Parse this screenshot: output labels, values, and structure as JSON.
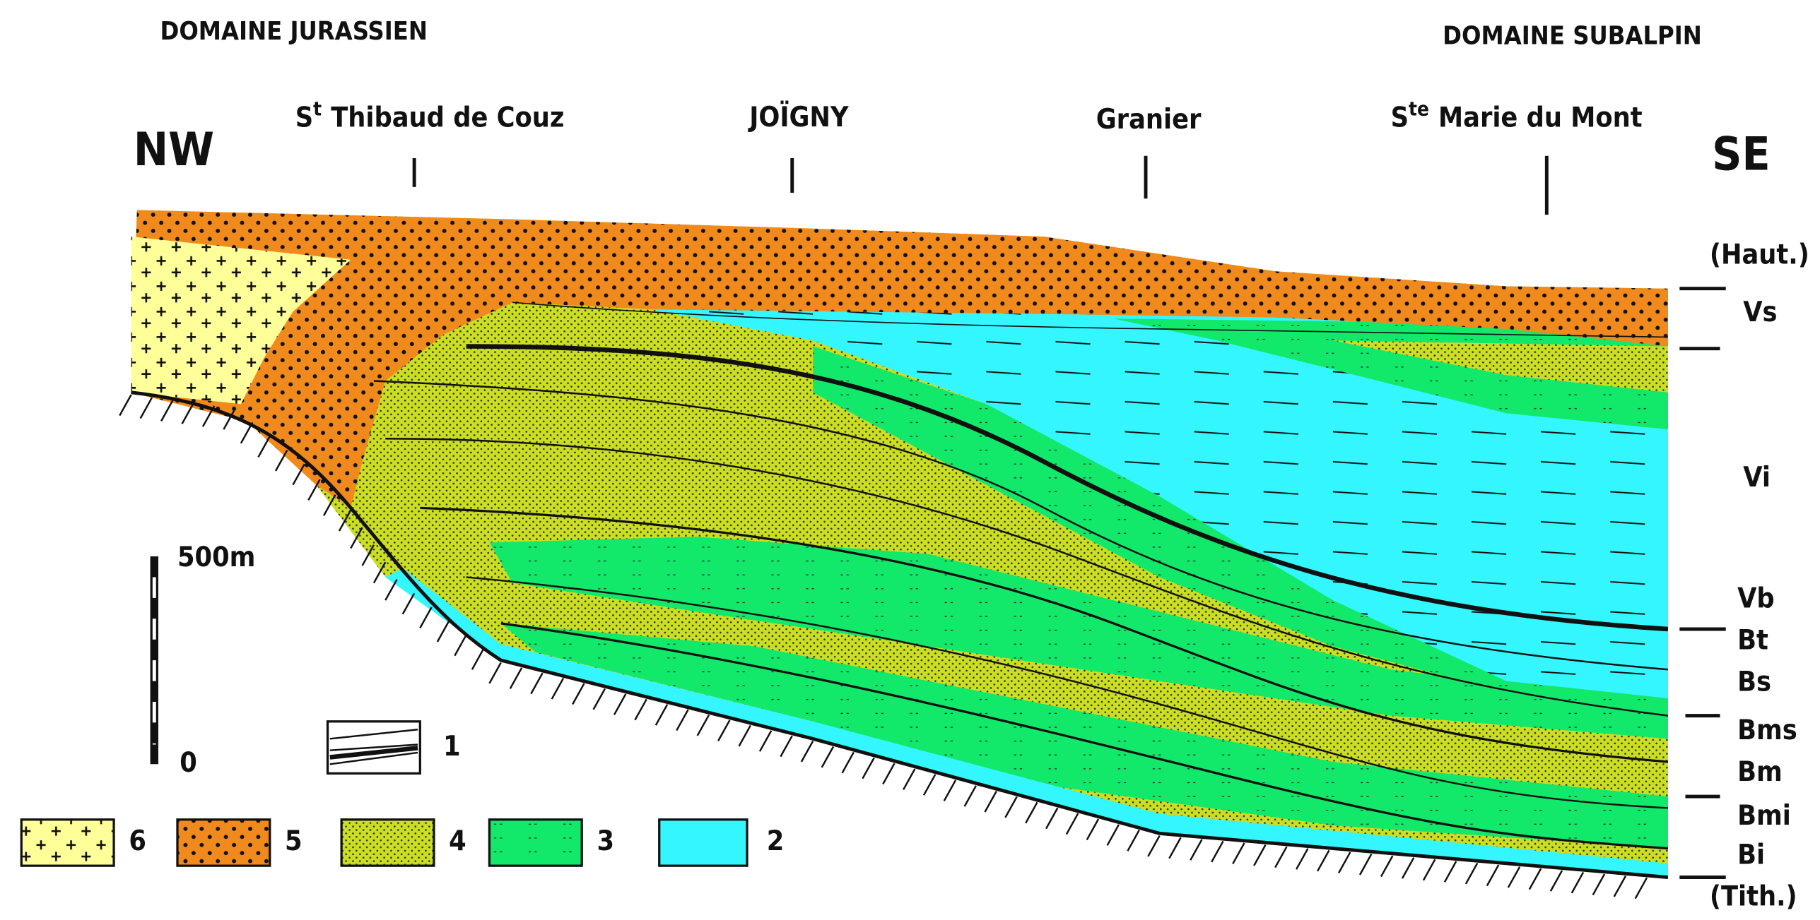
{
  "domains": {
    "left": "DOMAINE JURASSIEN",
    "right": "DOMAINE SUBALPIN"
  },
  "directions": {
    "left": "NW",
    "right": "SE"
  },
  "localities": [
    {
      "prefix": "S",
      "sup": "t",
      "name": "Thibaud de Couz"
    },
    {
      "name": "JOÏGNY"
    },
    {
      "name": "Granier"
    },
    {
      "prefix": "S",
      "sup": "te",
      "name": "Marie du Mont"
    }
  ],
  "strata": [
    "(Haut.)",
    "Vs",
    "Vi",
    "Vb",
    "Bt",
    "Bs",
    "Bms",
    "Bm",
    "Bmi",
    "Bi",
    "(Tith.)"
  ],
  "scale": {
    "top": "500m",
    "bottom": "0"
  },
  "legend": [
    "6",
    "5",
    "4",
    "3",
    "2",
    "1"
  ]
}
